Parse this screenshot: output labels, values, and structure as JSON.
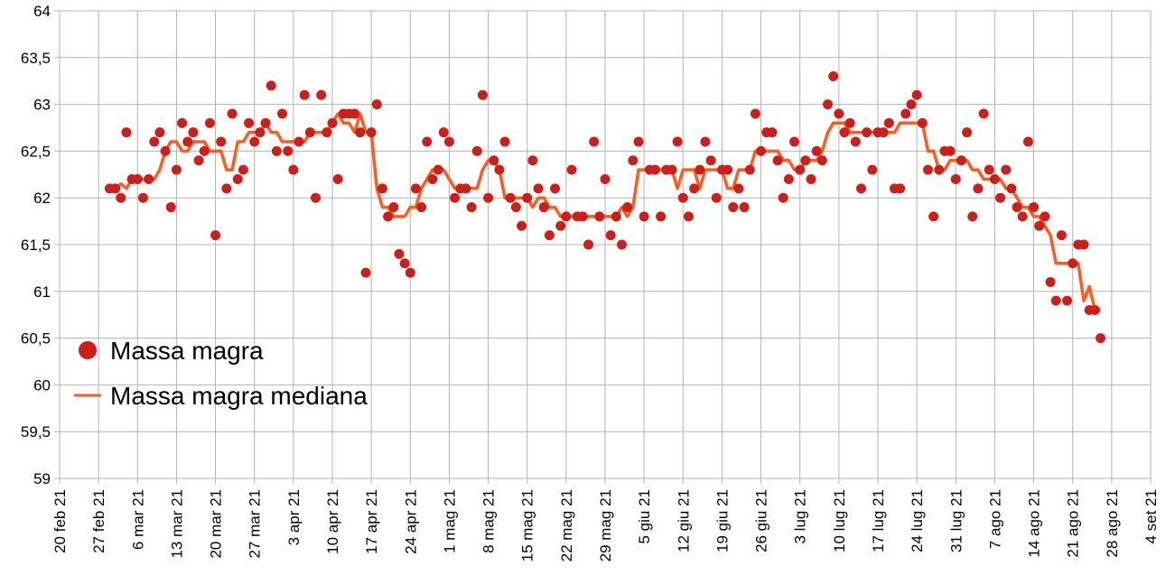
{
  "chart_data": {
    "type": "scatter",
    "title": "",
    "xlabel": "",
    "ylabel": "",
    "ylim": [
      59,
      64
    ],
    "y_step": 0.5,
    "y_ticks": [
      "59",
      "59,5",
      "60",
      "60,5",
      "61",
      "61,5",
      "62",
      "62,5",
      "63",
      "63,5",
      "64"
    ],
    "x_ticks": [
      "20 feb 21",
      "27 feb 21",
      "6 mar 21",
      "13 mar 21",
      "20 mar 21",
      "27 mar 21",
      "3 apr 21",
      "10 apr 21",
      "17 apr 21",
      "24 apr 21",
      "1 mag 21",
      "8 mag 21",
      "15 mag 21",
      "22 mag 21",
      "29 mag 21",
      "5 giu 21",
      "12 giu 21",
      "19 giu 21",
      "26 giu 21",
      "3 lug 21",
      "10 lug 21",
      "17 lug 21",
      "24 lug 21",
      "31 lug 21",
      "7 ago 21",
      "14 ago 21",
      "21 ago 21",
      "28 ago 21",
      "4 set 21"
    ],
    "x_tick_interval_days": 7,
    "x_range_days": [
      0,
      196
    ],
    "first_point_day": 9,
    "grid": true,
    "legend_placement": "bottom-left",
    "series": [
      {
        "name": "Massa magra",
        "kind": "points",
        "color": "#cc1f1a",
        "values": [
          62.1,
          62.1,
          62.0,
          62.7,
          62.2,
          62.2,
          62.0,
          62.2,
          62.6,
          62.7,
          62.5,
          61.9,
          62.3,
          62.8,
          62.6,
          62.7,
          62.4,
          62.5,
          62.8,
          61.6,
          62.6,
          62.1,
          62.9,
          62.2,
          62.3,
          62.8,
          62.6,
          62.7,
          62.8,
          63.2,
          62.5,
          62.9,
          62.5,
          62.3,
          62.6,
          63.1,
          62.7,
          62.0,
          63.1,
          62.7,
          62.8,
          62.2,
          62.9,
          62.9,
          62.9,
          62.7,
          61.2,
          62.7,
          63.0,
          62.1,
          61.8,
          61.9,
          61.4,
          61.3,
          61.2,
          62.1,
          61.9,
          62.6,
          62.2,
          62.3,
          62.7,
          62.6,
          62.0,
          62.1,
          62.1,
          61.9,
          62.5,
          63.1,
          62.0,
          62.4,
          62.3,
          62.6,
          62.0,
          61.9,
          61.7,
          62.0,
          62.4,
          62.1,
          61.9,
          61.6,
          62.1,
          61.7,
          61.8,
          62.3,
          61.8,
          61.8,
          61.5,
          62.6,
          61.8,
          62.2,
          61.6,
          61.8,
          61.5,
          61.9,
          62.4,
          62.6,
          61.8,
          62.3,
          62.3,
          61.8,
          62.3,
          62.3,
          62.6,
          62.0,
          61.8,
          62.1,
          62.3,
          62.6,
          62.4,
          62.0,
          62.3,
          62.3,
          61.9,
          62.1,
          61.9,
          62.3,
          62.9,
          62.5,
          62.7,
          62.7,
          62.4,
          62.0,
          62.2,
          62.6,
          62.3,
          62.4,
          62.2,
          62.5,
          62.4,
          63.0,
          63.3,
          62.9,
          62.7,
          62.8,
          62.6,
          62.1,
          62.7,
          62.3,
          62.7,
          62.7,
          62.8,
          62.1,
          62.1,
          62.9,
          63.0,
          63.1,
          62.8,
          62.3,
          61.8,
          62.3,
          62.5,
          62.5,
          62.2,
          62.4,
          62.7,
          61.8,
          62.1,
          62.9,
          62.3,
          62.2,
          62.0,
          62.3,
          62.1,
          61.9,
          61.8,
          62.6,
          61.9,
          61.7,
          61.8,
          61.1,
          60.9,
          61.6,
          60.9,
          61.3,
          61.5,
          61.5,
          60.8,
          60.8,
          60.5
        ]
      },
      {
        "name": "Massa magra mediana",
        "kind": "rolling-median-line",
        "color": "#ff5a1f",
        "window": 7
      }
    ]
  }
}
